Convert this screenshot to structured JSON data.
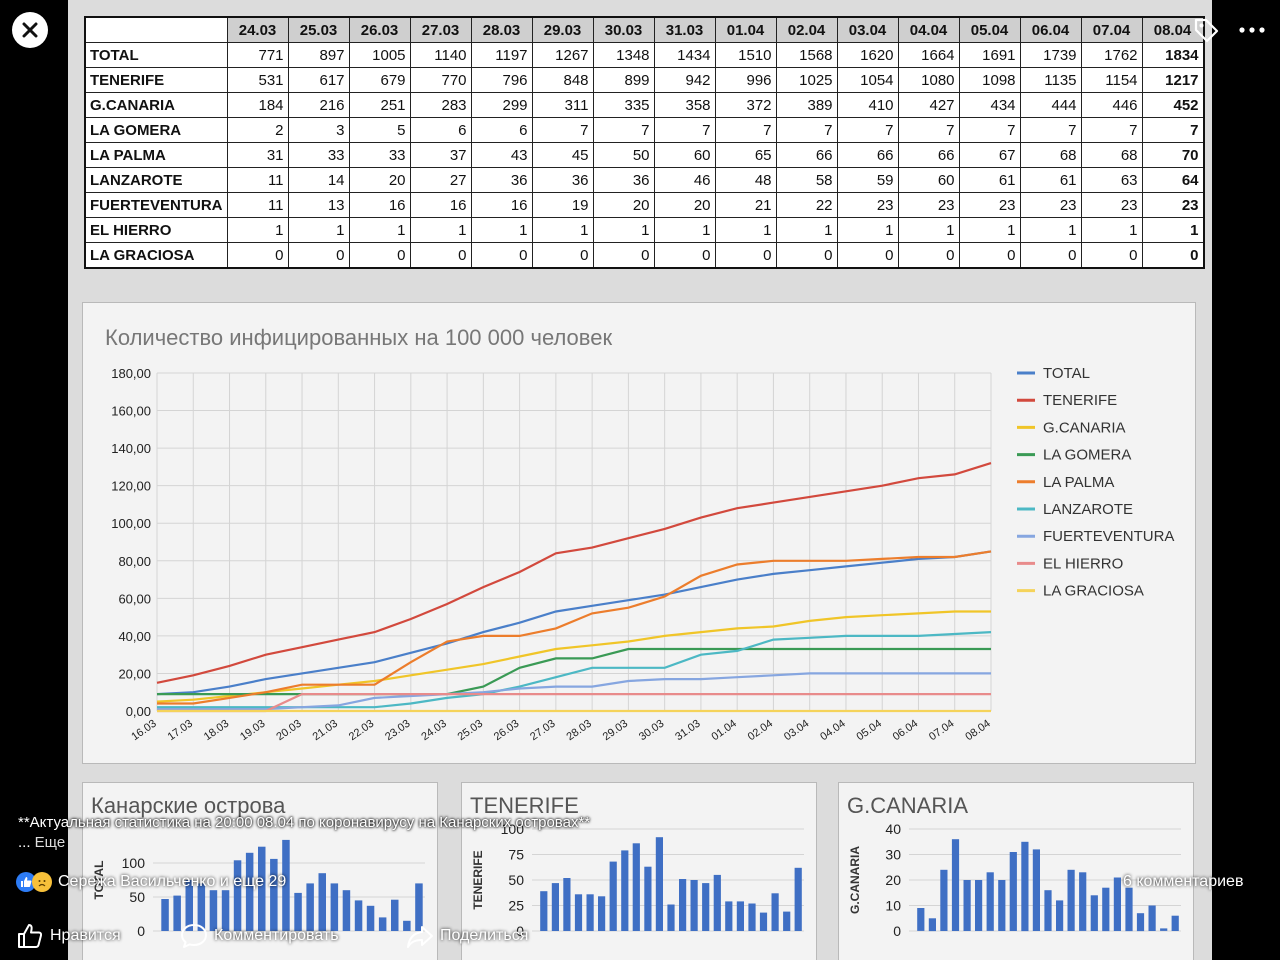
{
  "table": {
    "dates": [
      "24.03",
      "25.03",
      "26.03",
      "27.03",
      "28.03",
      "29.03",
      "30.03",
      "31.03",
      "01.04",
      "02.04",
      "03.04",
      "04.04",
      "05.04",
      "06.04",
      "07.04",
      "08.04"
    ],
    "rows": [
      {
        "name": "TOTAL",
        "values": [
          771,
          897,
          1005,
          1140,
          1197,
          1267,
          1348,
          1434,
          1510,
          1568,
          1620,
          1664,
          1691,
          1739,
          1762,
          1834
        ]
      },
      {
        "name": "TENERIFE",
        "values": [
          531,
          617,
          679,
          770,
          796,
          848,
          899,
          942,
          996,
          1025,
          1054,
          1080,
          1098,
          1135,
          1154,
          1217
        ]
      },
      {
        "name": "G.CANARIA",
        "values": [
          184,
          216,
          251,
          283,
          299,
          311,
          335,
          358,
          372,
          389,
          410,
          427,
          434,
          444,
          446,
          452
        ]
      },
      {
        "name": "LA GOMERA",
        "values": [
          2,
          3,
          5,
          6,
          6,
          7,
          7,
          7,
          7,
          7,
          7,
          7,
          7,
          7,
          7,
          7
        ]
      },
      {
        "name": "LA PALMA",
        "values": [
          31,
          33,
          33,
          37,
          43,
          45,
          50,
          60,
          65,
          66,
          66,
          66,
          67,
          68,
          68,
          70
        ]
      },
      {
        "name": "LANZAROTE",
        "values": [
          11,
          14,
          20,
          27,
          36,
          36,
          36,
          46,
          48,
          58,
          59,
          60,
          61,
          61,
          63,
          64
        ]
      },
      {
        "name": "FUERTEVENTURA",
        "values": [
          11,
          13,
          16,
          16,
          16,
          19,
          20,
          20,
          21,
          22,
          23,
          23,
          23,
          23,
          23,
          23
        ]
      },
      {
        "name": "EL HIERRO",
        "values": [
          1,
          1,
          1,
          1,
          1,
          1,
          1,
          1,
          1,
          1,
          1,
          1,
          1,
          1,
          1,
          1
        ]
      },
      {
        "name": "LA GRACIOSA",
        "values": [
          0,
          0,
          0,
          0,
          0,
          0,
          0,
          0,
          0,
          0,
          0,
          0,
          0,
          0,
          0,
          0
        ]
      }
    ]
  },
  "chart_data": [
    {
      "type": "line",
      "title": "Количество инфицированных на 100 000 человек",
      "x": [
        "16.03",
        "17.03",
        "18.03",
        "19.03",
        "20.03",
        "21.03",
        "22.03",
        "23.03",
        "24.03",
        "25.03",
        "26.03",
        "27.03",
        "28.03",
        "29.03",
        "30.03",
        "31.03",
        "01.04",
        "02.04",
        "03.04",
        "04.04",
        "05.04",
        "06.04",
        "07.04",
        "08.04"
      ],
      "yticks": [
        "0,00",
        "20,00",
        "40,00",
        "60,00",
        "80,00",
        "100,00",
        "120,00",
        "140,00",
        "160,00",
        "180,00"
      ],
      "ylim": [
        0,
        180
      ],
      "grid": true,
      "legend": "right",
      "series": [
        {
          "name": "TOTAL",
          "color": "#4a7fc9",
          "values": [
            9,
            10,
            13,
            17,
            20,
            23,
            26,
            31,
            36,
            42,
            47,
            53,
            56,
            59,
            62,
            66,
            70,
            73,
            75,
            77,
            79,
            81,
            82,
            85
          ]
        },
        {
          "name": "TENERIFE",
          "color": "#d2493d",
          "values": [
            15,
            19,
            24,
            30,
            34,
            38,
            42,
            49,
            57,
            66,
            74,
            84,
            87,
            92,
            97,
            103,
            108,
            111,
            114,
            117,
            120,
            124,
            126,
            132
          ]
        },
        {
          "name": "G.CANARIA",
          "color": "#f0c528",
          "values": [
            5,
            6,
            8,
            10,
            12,
            14,
            16,
            19,
            22,
            25,
            29,
            33,
            35,
            37,
            40,
            42,
            44,
            45,
            48,
            50,
            51,
            52,
            53,
            53
          ]
        },
        {
          "name": "LA GOMERA",
          "color": "#3a9a55",
          "values": [
            9,
            9,
            9,
            9,
            9,
            9,
            9,
            9,
            9,
            13,
            23,
            28,
            28,
            33,
            33,
            33,
            33,
            33,
            33,
            33,
            33,
            33,
            33,
            33
          ]
        },
        {
          "name": "LA PALMA",
          "color": "#ec7d2c",
          "values": [
            4,
            4,
            7,
            10,
            14,
            14,
            14,
            26,
            37,
            40,
            40,
            44,
            52,
            55,
            61,
            72,
            78,
            80,
            80,
            80,
            81,
            82,
            82,
            85
          ]
        },
        {
          "name": "LANZAROTE",
          "color": "#4cb8c4",
          "values": [
            2,
            2,
            2,
            2,
            2,
            2,
            2,
            4,
            7,
            9,
            13,
            18,
            23,
            23,
            23,
            30,
            32,
            38,
            39,
            40,
            40,
            40,
            41,
            42
          ]
        },
        {
          "name": "FUERTEVENTURA",
          "color": "#86a6e0",
          "values": [
            1,
            1,
            1,
            1,
            2,
            3,
            7,
            8,
            9,
            10,
            12,
            13,
            13,
            16,
            17,
            17,
            18,
            19,
            20,
            20,
            20,
            20,
            20,
            20
          ]
        },
        {
          "name": "EL HIERRO",
          "color": "#e88b8b",
          "values": [
            0,
            0,
            0,
            0,
            9,
            9,
            9,
            9,
            9,
            9,
            9,
            9,
            9,
            9,
            9,
            9,
            9,
            9,
            9,
            9,
            9,
            9,
            9,
            9
          ]
        },
        {
          "name": "LA GRACIOSA",
          "color": "#f5d35a",
          "values": [
            0,
            0,
            0,
            0,
            0,
            0,
            0,
            0,
            0,
            0,
            0,
            0,
            0,
            0,
            0,
            0,
            0,
            0,
            0,
            0,
            0,
            0,
            0,
            0
          ]
        }
      ]
    },
    {
      "type": "bar",
      "title": "Канарские острова",
      "ylabel": "TOTAL",
      "ylim": [
        0,
        150
      ],
      "yticks": [
        "0",
        "50",
        "100"
      ],
      "color": "#3f6fc4",
      "values": [
        47,
        52,
        75,
        70,
        60,
        60,
        104,
        115,
        124,
        106,
        134,
        56,
        70,
        85,
        70,
        60,
        45,
        37,
        20,
        46,
        15,
        70
      ]
    },
    {
      "type": "bar",
      "title": "TENERIFE",
      "ylabel": "TENERIFE",
      "ylim": [
        0,
        100
      ],
      "yticks": [
        "0",
        "25",
        "50",
        "75",
        "100"
      ],
      "color": "#3f6fc4",
      "values": [
        39,
        47,
        52,
        36,
        36,
        34,
        68,
        79,
        86,
        63,
        92,
        26,
        51,
        50,
        47,
        55,
        29,
        29,
        27,
        18,
        37,
        19,
        62
      ]
    },
    {
      "type": "bar",
      "title": "G.CANARIA",
      "ylabel": "G.CANARIA",
      "ylim": [
        0,
        40
      ],
      "yticks": [
        "0",
        "10",
        "20",
        "30",
        "40"
      ],
      "color": "#3f6fc4",
      "values": [
        9,
        5,
        24,
        36,
        20,
        20,
        23,
        20,
        31,
        35,
        32,
        16,
        12,
        24,
        23,
        14,
        17,
        21,
        17,
        7,
        10,
        1,
        6
      ]
    }
  ],
  "post": {
    "text": "**Актуальная статистика на 20:00 08.04 по коронавирусу на Канарских островах**",
    "more_prefix": "... ",
    "more_label": "Еще",
    "reactions_text": "Сережа Васильченко и еще 29",
    "comments_count": "6 комментариев",
    "like_label": "Нравится",
    "comment_label": "Комментировать",
    "share_label": "Поделиться"
  }
}
